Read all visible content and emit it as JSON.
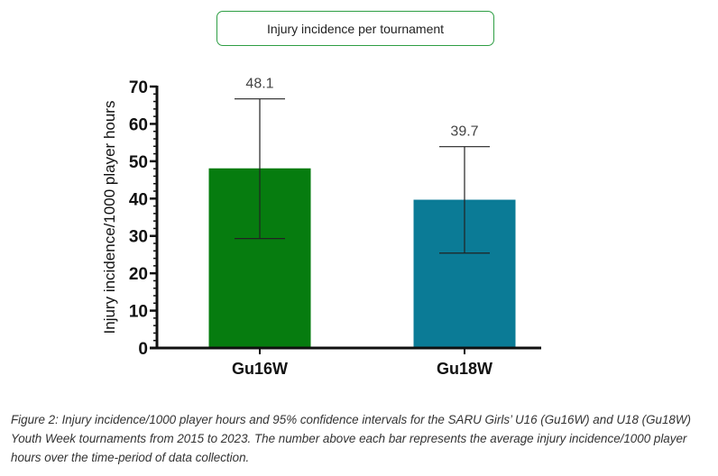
{
  "chart_data": {
    "type": "bar",
    "title": "Injury incidence per tournament",
    "ylabel": "Injury incidence/1000 player hours",
    "xlabel": "",
    "ylim": [
      0,
      70
    ],
    "yticks": [
      0,
      10,
      20,
      30,
      40,
      50,
      60,
      70
    ],
    "grid": false,
    "categories": [
      "Gu16W",
      "Gu18W"
    ],
    "values": [
      48.1,
      39.7
    ],
    "data_labels": [
      "48.1",
      "39.7"
    ],
    "ci_lower": [
      29.3,
      25.4
    ],
    "ci_upper": [
      66.7,
      53.9
    ],
    "colors": [
      "#067c0f",
      "#0b7b96"
    ]
  },
  "caption": "Figure 2: Injury incidence/1000 player hours and 95% confidence intervals for the SARU Girls’ U16 (Gu16W) and U18 (Gu18W) Youth Week tournaments from 2015 to 2023. The number above each bar represents the average injury incidence/1000 player hours over the time-period of data collection."
}
